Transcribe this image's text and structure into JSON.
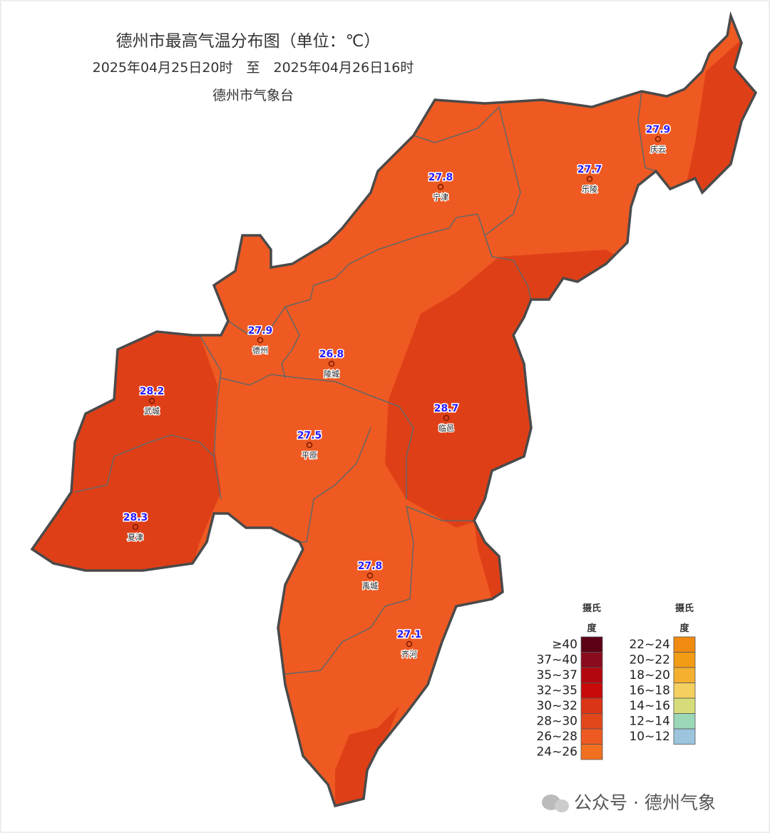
{
  "header": {
    "title": "德州市最高气温分布图（单位：℃）",
    "period": "2025年04月25日20时　至　2025年04月26日16时",
    "agency": "德州市气象台"
  },
  "stations": [
    {
      "name": "庆云",
      "value": 27.9
    },
    {
      "name": "乐陵",
      "value": 27.7
    },
    {
      "name": "宁津",
      "value": 27.8
    },
    {
      "name": "德州",
      "value": 27.9
    },
    {
      "name": "陵城",
      "value": 26.8
    },
    {
      "name": "武城",
      "value": 28.2
    },
    {
      "name": "临邑",
      "value": 28.7
    },
    {
      "name": "平原",
      "value": 27.5
    },
    {
      "name": "夏津",
      "value": 28.3
    },
    {
      "name": "禹城",
      "value": 27.8
    },
    {
      "name": "齐河",
      "value": 27.1
    }
  ],
  "legend": {
    "columns": [
      {
        "heading": "摄氏度",
        "items": [
          {
            "label": "≥40",
            "color": "#5c0015"
          },
          {
            "label": "37~40",
            "color": "#8a0b1e"
          },
          {
            "label": "35~37",
            "color": "#b3070f"
          },
          {
            "label": "32~35",
            "color": "#c80a0a"
          },
          {
            "label": "30~32",
            "color": "#dc3416"
          },
          {
            "label": "28~30",
            "color": "#e2461b"
          },
          {
            "label": "26~28",
            "color": "#ee5a22"
          },
          {
            "label": "24~26",
            "color": "#f07020"
          }
        ]
      },
      {
        "heading": "摄氏度",
        "items": [
          {
            "label": "22~24",
            "color": "#f08a10"
          },
          {
            "label": "20~22",
            "color": "#f29b15"
          },
          {
            "label": "18~20",
            "color": "#f5b030"
          },
          {
            "label": "16~18",
            "color": "#f4d060"
          },
          {
            "label": "14~16",
            "color": "#d6dc7a"
          },
          {
            "label": "12~14",
            "color": "#9ad8b8"
          },
          {
            "label": "10~12",
            "color": "#9cc4dc"
          }
        ]
      }
    ]
  },
  "watermark": "公众号 · 德州气象"
}
